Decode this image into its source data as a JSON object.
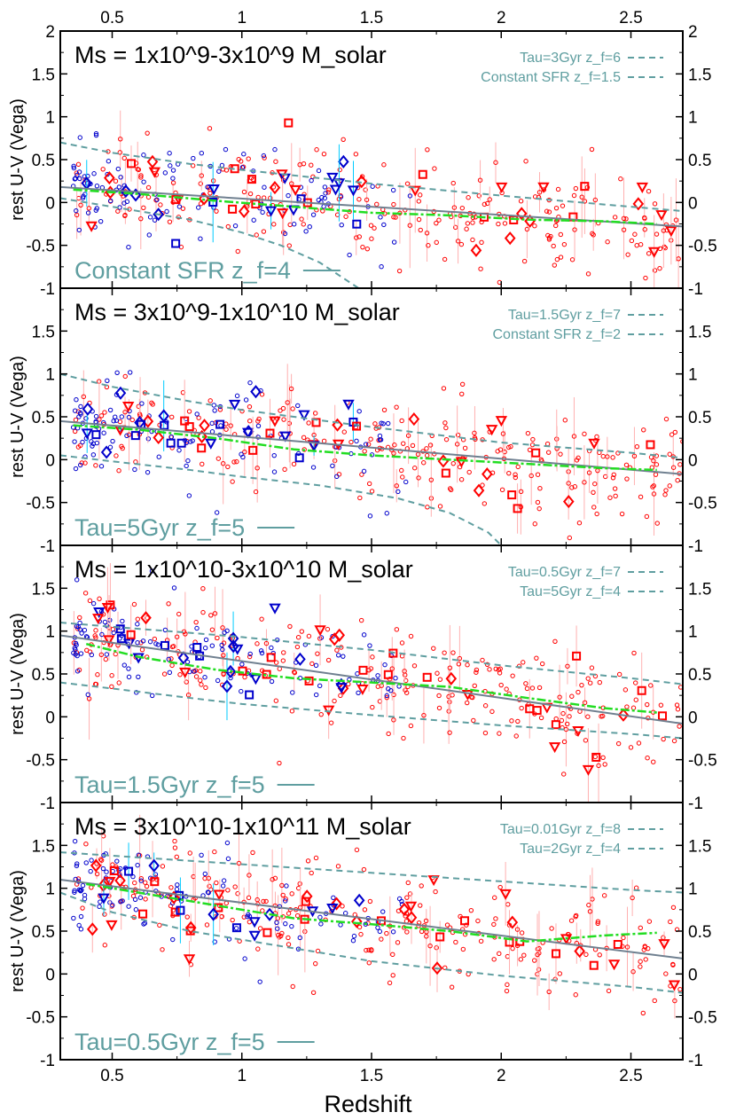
{
  "colors": {
    "model": "#5f9ea0",
    "fit": "#708090",
    "median": "#22dd22",
    "red_points": "#ff0000",
    "blue_points": "#0000cc",
    "error_bars": "#ffb0b0",
    "blue_error_bars": "#00ccff"
  },
  "chart_data": [
    {
      "type": "scatter",
      "title": "Ms = 1x10^9-3x10^9 M_solar",
      "ylabel": "rest U-V (Vega)",
      "xlim": [
        0.3,
        2.7
      ],
      "ylim": [
        -1,
        2
      ],
      "legend": [
        "Tau=3Gyr z_f=6",
        "Constant SFR z_f=1.5"
      ],
      "big_legend": "Constant SFR z_f=4",
      "model_curves": [
        {
          "label": "Tau=3Gyr z_f=6",
          "x": [
            0.3,
            0.5,
            0.8,
            1.0,
            1.5,
            2.0,
            2.5,
            2.7
          ],
          "y": [
            0.7,
            0.58,
            0.45,
            0.38,
            0.22,
            0.08,
            -0.05,
            -0.1
          ]
        },
        {
          "label": "Constant SFR z_f=1.5",
          "x": [
            0.3,
            0.5,
            0.8,
            1.0,
            1.15,
            1.3,
            1.4,
            1.45
          ],
          "y": [
            0.05,
            -0.05,
            -0.2,
            -0.35,
            -0.5,
            -0.7,
            -0.9,
            -1.0
          ]
        }
      ],
      "fit_line": {
        "x": [
          0.3,
          2.7
        ],
        "y": [
          0.18,
          -0.28
        ]
      },
      "median_curve": {
        "x": [
          0.35,
          0.6,
          0.9,
          1.2,
          1.5,
          1.8,
          2.1,
          2.4,
          2.6
        ],
        "y": [
          0.15,
          0.1,
          0.02,
          -0.05,
          -0.12,
          -0.15,
          -0.2,
          -0.22,
          -0.25
        ]
      }
    },
    {
      "type": "scatter",
      "title": "Ms = 3x10^9-1x10^10 M_solar",
      "ylabel": "rest U-V (Vega)",
      "xlim": [
        0.3,
        2.7
      ],
      "ylim": [
        -1,
        2
      ],
      "legend": [
        "Tau=1.5Gyr z_f=7",
        "Constant SFR z_f=2"
      ],
      "big_legend": "Tau=5Gyr z_f=5",
      "model_curves": [
        {
          "label": "Tau=1.5Gyr z_f=7",
          "x": [
            0.3,
            0.5,
            0.8,
            1.0,
            1.5,
            2.0,
            2.5,
            2.7
          ],
          "y": [
            1.0,
            0.85,
            0.68,
            0.58,
            0.38,
            0.2,
            0.08,
            0.02
          ]
        },
        {
          "label": "Constant SFR z_f=2",
          "x": [
            0.3,
            0.5,
            0.8,
            1.0,
            1.3,
            1.6,
            1.8,
            1.95,
            2.0
          ],
          "y": [
            0.05,
            -0.02,
            -0.12,
            -0.2,
            -0.3,
            -0.45,
            -0.62,
            -0.85,
            -1.0
          ]
        }
      ],
      "fit_line": {
        "x": [
          0.3,
          2.7
        ],
        "y": [
          0.45,
          -0.17
        ]
      },
      "median_curve": {
        "x": [
          0.35,
          0.6,
          0.9,
          1.2,
          1.5,
          1.8,
          2.1,
          2.4,
          2.6
        ],
        "y": [
          0.4,
          0.35,
          0.25,
          0.12,
          0.05,
          0.0,
          -0.05,
          -0.1,
          -0.12
        ]
      }
    },
    {
      "type": "scatter",
      "title": "Ms = 1x10^10-3x10^10 M_solar",
      "ylabel": "rest U-V (Vega)",
      "xlim": [
        0.3,
        2.7
      ],
      "ylim": [
        -1,
        2
      ],
      "legend": [
        "Tau=0.5Gyr z_f=7",
        "Tau=5Gyr z_f=4"
      ],
      "big_legend": "Tau=1.5Gyr z_f=5",
      "model_curves": [
        {
          "label": "Tau=0.5Gyr z_f=7",
          "x": [
            0.3,
            0.5,
            0.8,
            1.0,
            1.5,
            2.0,
            2.5,
            2.7
          ],
          "y": [
            1.1,
            1.05,
            0.98,
            0.93,
            0.78,
            0.6,
            0.45,
            0.38
          ]
        },
        {
          "label": "Tau=5Gyr z_f=4",
          "x": [
            0.3,
            0.5,
            0.8,
            1.0,
            1.5,
            2.0,
            2.5,
            2.7
          ],
          "y": [
            0.4,
            0.33,
            0.22,
            0.15,
            0.02,
            -0.1,
            -0.2,
            -0.25
          ]
        }
      ],
      "fit_line": {
        "x": [
          0.3,
          2.7
        ],
        "y": [
          0.95,
          -0.08
        ]
      },
      "median_curve": {
        "x": [
          0.4,
          0.6,
          0.9,
          1.2,
          1.5,
          1.8,
          2.1,
          2.4,
          2.6
        ],
        "y": [
          0.85,
          0.7,
          0.55,
          0.45,
          0.4,
          0.35,
          0.22,
          0.1,
          0.05
        ]
      }
    },
    {
      "type": "scatter",
      "title": "Ms = 3x10^10-1x10^11 M_solar",
      "ylabel": "rest U-V (Vega)",
      "xlabel": "Redshift",
      "xlim": [
        0.3,
        2.7
      ],
      "ylim": [
        -1,
        2
      ],
      "legend": [
        "Tau=0.01Gyr z_f=8",
        "Tau=2Gyr z_f=4"
      ],
      "big_legend": "Tau=0.5Gyr z_f=5",
      "model_curves": [
        {
          "label": "Tau=0.01Gyr z_f=8",
          "x": [
            0.3,
            0.5,
            0.8,
            1.0,
            1.5,
            2.0,
            2.5,
            2.7
          ],
          "y": [
            1.42,
            1.38,
            1.32,
            1.28,
            1.18,
            1.08,
            0.98,
            0.95
          ]
        },
        {
          "label": "Tau=2Gyr z_f=4",
          "x": [
            0.3,
            0.5,
            0.8,
            1.0,
            1.5,
            2.0,
            2.5,
            2.7
          ],
          "y": [
            0.95,
            0.72,
            0.5,
            0.4,
            0.15,
            -0.02,
            -0.15,
            -0.22
          ]
        }
      ],
      "fit_line": {
        "x": [
          0.3,
          2.7
        ],
        "y": [
          1.1,
          0.18
        ]
      },
      "median_curve": {
        "x": [
          0.4,
          0.6,
          0.9,
          1.2,
          1.5,
          1.8,
          2.1,
          2.4,
          2.6
        ],
        "y": [
          1.05,
          0.95,
          0.8,
          0.65,
          0.58,
          0.5,
          0.38,
          0.45,
          0.48
        ]
      }
    }
  ],
  "axes": {
    "xticks": [
      "0.5",
      "1",
      "1.5",
      "2",
      "2.5"
    ],
    "xtick_values": [
      0.5,
      1.0,
      1.5,
      2.0,
      2.5
    ],
    "yticks": [
      "2",
      "1.5",
      "1",
      "0.5",
      "0",
      "-0.5",
      "-1"
    ],
    "ytick_values": [
      2,
      1.5,
      1,
      0.5,
      0,
      -0.5,
      -1
    ],
    "xlabel": "Redshift"
  }
}
